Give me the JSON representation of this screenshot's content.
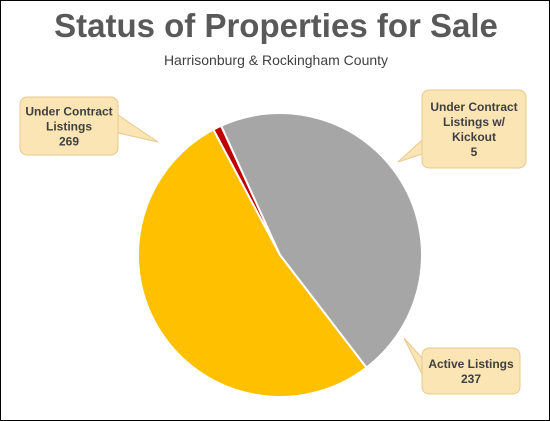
{
  "chart_data": {
    "type": "pie",
    "title": "Status of Properties for Sale",
    "subtitle": "Harrisonburg & Rockingham County",
    "slices": [
      {
        "label": [
          "Under Contract",
          "Listings w/",
          "Kickout"
        ],
        "value": 5,
        "color": "#C00000"
      },
      {
        "label": [
          "Active Listings"
        ],
        "value": 237,
        "color": "#A6A6A6"
      },
      {
        "label": [
          "Under Contract",
          "Listings"
        ],
        "value": 269,
        "color": "#FFC000"
      }
    ]
  },
  "callout_style": {
    "fill": "#FBE5B4",
    "stroke": "#E7C98C"
  }
}
